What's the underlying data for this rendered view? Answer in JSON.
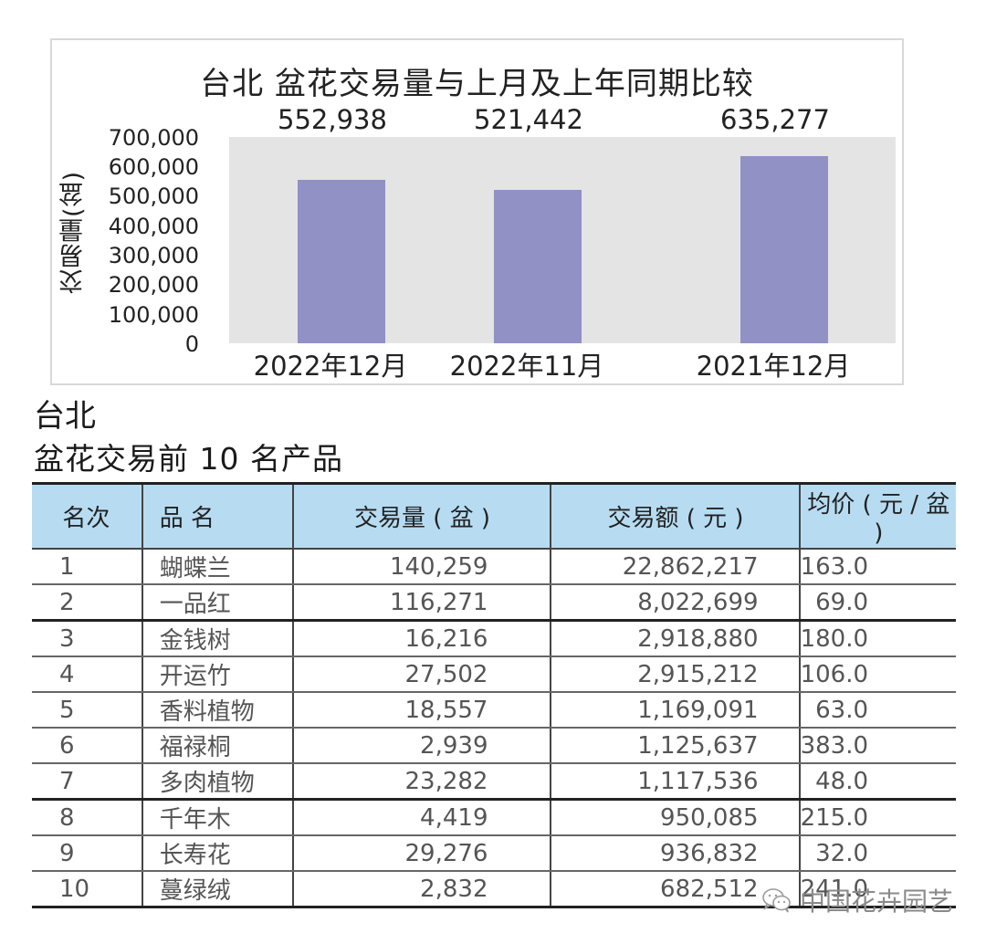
{
  "chart": {
    "title": "台北 盆花交易量与上月及上年同期比较",
    "ylabel": "交易量(盆)",
    "yticks": [
      "700,000",
      "600,000",
      "500,000",
      "400,000",
      "300,000",
      "200,000",
      "100,000",
      "0"
    ],
    "bar_color": "#9191c6",
    "plot_bg": "#e4e4e4"
  },
  "chart_data": {
    "type": "bar",
    "title": "台北 盆花交易量与上月及上年同期比较",
    "xlabel": "",
    "ylabel": "交易量(盆)",
    "categories": [
      "2022年12月",
      "2022年11月",
      "2021年12月"
    ],
    "values": [
      552938,
      521442,
      635277
    ],
    "value_labels": [
      "552,938",
      "521,442",
      "635,277"
    ],
    "ylim": [
      0,
      700000
    ],
    "yticks": [
      0,
      100000,
      200000,
      300000,
      400000,
      500000,
      600000,
      700000
    ],
    "grid": false,
    "legend": null
  },
  "section": {
    "title_line1": "台北",
    "title_line2": "盆花交易前 10 名产品"
  },
  "table": {
    "header_bg": "#b7dcf2",
    "headers": [
      "名次",
      "品 名",
      "交易量 ( 盆 )",
      "交易额 ( 元 )",
      "均价 ( 元 / 盆 )"
    ],
    "rows": [
      {
        "rank": "1",
        "name": "蝴蝶兰",
        "volume": "140,259",
        "amount": "22,862,217",
        "avg": "163.0"
      },
      {
        "rank": "2",
        "name": "一品红",
        "volume": "116,271",
        "amount": "8,022,699",
        "avg": "69.0"
      },
      {
        "rank": "3",
        "name": "金钱树",
        "volume": "16,216",
        "amount": "2,918,880",
        "avg": "180.0"
      },
      {
        "rank": "4",
        "name": "开运竹",
        "volume": "27,502",
        "amount": "2,915,212",
        "avg": "106.0"
      },
      {
        "rank": "5",
        "name": "香料植物",
        "volume": "18,557",
        "amount": "1,169,091",
        "avg": "63.0"
      },
      {
        "rank": "6",
        "name": "福禄桐",
        "volume": "2,939",
        "amount": "1,125,637",
        "avg": "383.0"
      },
      {
        "rank": "7",
        "name": "多肉植物",
        "volume": "23,282",
        "amount": "1,117,536",
        "avg": "48.0"
      },
      {
        "rank": "8",
        "name": "千年木",
        "volume": "4,419",
        "amount": "950,085",
        "avg": "215.0"
      },
      {
        "rank": "9",
        "name": "长寿花",
        "volume": "29,276",
        "amount": "936,832",
        "avg": "32.0"
      },
      {
        "rank": "10",
        "name": "蔓绿绒",
        "volume": "2,832",
        "amount": "682,512",
        "avg": "241.0"
      }
    ]
  },
  "watermark": {
    "icon": "wechat-icon",
    "text": "中国花卉园艺"
  }
}
